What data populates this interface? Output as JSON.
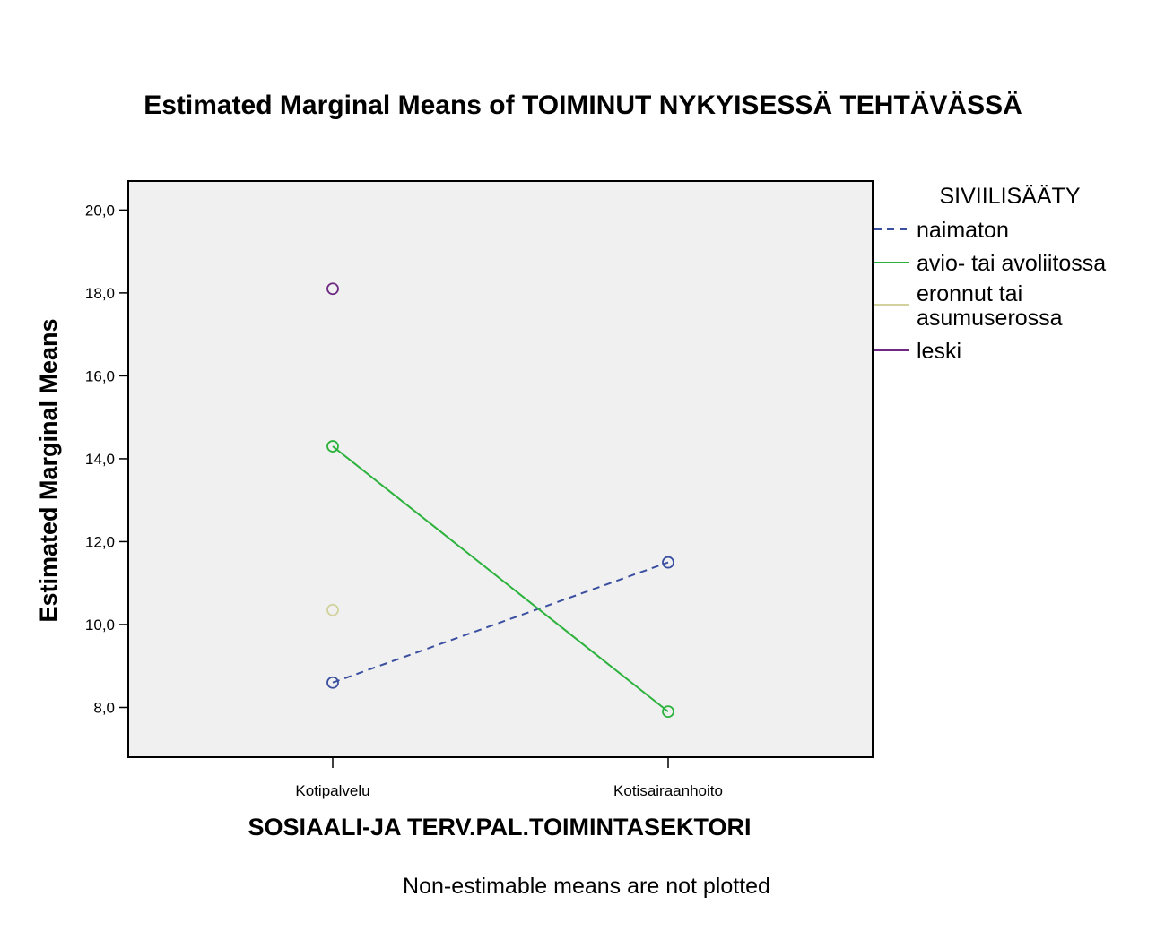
{
  "chart_data": {
    "type": "line",
    "title": "Estimated Marginal Means of TOIMINUT NYKYISESSÄ TEHTÄVÄSSÄ",
    "xlabel": "SOSIAALI-JA TERV.PAL.TOIMINTASEKTORI",
    "ylabel": "Estimated Marginal Means",
    "categories": [
      "Kotipalvelu",
      "Kotisairaanhoito"
    ],
    "ylim": [
      6.8,
      20.7
    ],
    "yticks": [
      8.0,
      10.0,
      12.0,
      14.0,
      16.0,
      18.0,
      20.0
    ],
    "ytick_labels": [
      "8,0",
      "10,0",
      "12,0",
      "14,0",
      "16,0",
      "18,0",
      "20,0"
    ],
    "legend_title": "SIVIILISÄÄTY",
    "legend_position": "right",
    "plot_background": "#f0f0f0",
    "grid": false,
    "series": [
      {
        "name": "naimaton",
        "values": [
          8.6,
          11.5
        ],
        "color": "#3a4fa0",
        "dashed": true
      },
      {
        "name": "avio- tai avoliitossa",
        "values": [
          14.3,
          7.9
        ],
        "color": "#2db33d",
        "dashed": false
      },
      {
        "name": "eronnut tai asumuserossa",
        "name_lines": [
          "eronnut tai",
          "asumuserossa"
        ],
        "values": [
          10.35,
          null
        ],
        "color": "#d2d29e",
        "dashed": false
      },
      {
        "name": "leski",
        "values": [
          18.1,
          null
        ],
        "color": "#6e2a82",
        "dashed": false
      }
    ],
    "footnote": "Non-estimable means are not plotted"
  }
}
